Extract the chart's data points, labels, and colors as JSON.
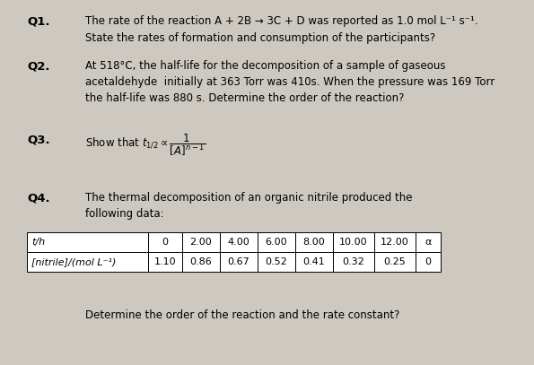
{
  "background_color": "#cdc8c0",
  "q1_label": "Q1.",
  "q1_line1": "The rate of the reaction A + 2B → 3C + D was reported as 1.0 mol L⁻¹ s⁻¹.",
  "q1_line2": "State the rates of formation and consumption of the participants?",
  "q2_label": "Q2.",
  "q2_line1": "At 518°C, the half-life for the decomposition of a sample of gaseous",
  "q2_line2": "acetaldehyde  initially at 363 Torr was 410s. When the pressure was 169 Torr",
  "q2_line3": "the half-life was 880 s. Determine the order of the reaction?",
  "q3_label": "Q3.",
  "q4_label": "Q4.",
  "q4_line1": "The thermal decomposition of an organic nitrile produced the",
  "q4_line2": "following data:",
  "q4_bottom": "Determine the order of the reaction and the rate constant?",
  "table_headers": [
    "t/h",
    "0",
    "2.00",
    "4.00",
    "6.00",
    "8.00",
    "10.00",
    "12.00",
    "α"
  ],
  "table_row2_label": "[nitrile]/(mol L⁻¹)",
  "table_row2_values": [
    "1.10",
    "0.86",
    "0.67",
    "0.52",
    "0.41",
    "0.32",
    "0.25",
    "0"
  ],
  "col_widths_inches": [
    1.35,
    0.38,
    0.42,
    0.42,
    0.42,
    0.42,
    0.46,
    0.46,
    0.28
  ],
  "font_size": 8.5,
  "label_font_size": 9.5,
  "table_font_size": 8.0
}
